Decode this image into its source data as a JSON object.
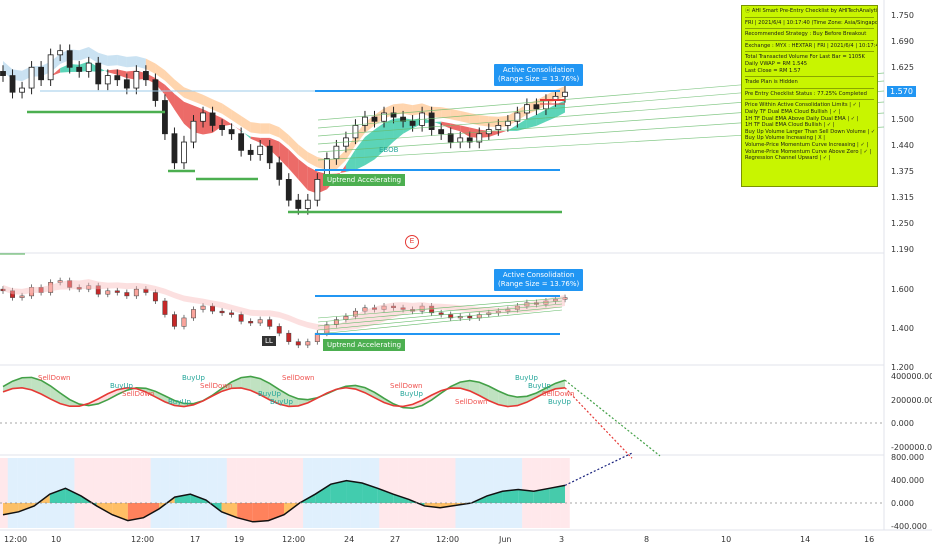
{
  "chart_data": [
    {
      "type": "candlestick",
      "panel": "main",
      "y_ticks": [
        "1.750",
        "1.690",
        "1.625",
        "1.565",
        "1.500",
        "1.440",
        "1.375",
        "1.315",
        "1.250",
        "1.190"
      ],
      "ylim": [
        1.19,
        1.78
      ],
      "current_price": "1.570",
      "annotations": [
        "Active Consolidation",
        "(Range Size = 13.76%)",
        "Uptrend Accelerating",
        "EBOB"
      ],
      "event_marker": "E",
      "closes": [
        1.61,
        1.57,
        1.58,
        1.63,
        1.6,
        1.66,
        1.67,
        1.63,
        1.62,
        1.64,
        1.59,
        1.61,
        1.6,
        1.58,
        1.62,
        1.6,
        1.55,
        1.47,
        1.4,
        1.45,
        1.5,
        1.52,
        1.49,
        1.48,
        1.47,
        1.43,
        1.42,
        1.44,
        1.4,
        1.36,
        1.31,
        1.29,
        1.31,
        1.36,
        1.41,
        1.44,
        1.46,
        1.49,
        1.51,
        1.5,
        1.52,
        1.51,
        1.5,
        1.49,
        1.52,
        1.48,
        1.47,
        1.45,
        1.46,
        1.45,
        1.47,
        1.48,
        1.49,
        1.5,
        1.52,
        1.54,
        1.53,
        1.55,
        1.56,
        1.57
      ]
    },
    {
      "type": "candlestick",
      "panel": "second",
      "y_ticks": [
        "1.600",
        "1.400",
        "1.200"
      ],
      "ylim": [
        1.19,
        1.78
      ],
      "annotations": [
        "Active Consolidation",
        "(Range Size = 13.76%)",
        "Uptrend Accelerating",
        "LL"
      ]
    },
    {
      "type": "line",
      "panel": "volume-momentum",
      "y_ticks": [
        "400000.000",
        "200000.000",
        "0.000",
        "-200000.000"
      ],
      "labels": [
        "SellDown",
        "BuyUp",
        "SellDown",
        "BuyUp",
        "BuyUp",
        "SellDown",
        "BuyUp",
        "BuyUp",
        "SellDown",
        "SellDown",
        "BuyUp",
        "SellDown",
        "BuyUp",
        "BuyUp",
        "SellDown",
        "BuyUp"
      ]
    },
    {
      "type": "area",
      "panel": "oscillator",
      "y_ticks": [
        "800.000",
        "400.000",
        "0.000",
        "-400.000"
      ],
      "values": [
        -200,
        -150,
        -50,
        150,
        250,
        120,
        -50,
        -200,
        -300,
        -250,
        -100,
        100,
        150,
        50,
        -150,
        -250,
        -320,
        -300,
        -200,
        0,
        150,
        320,
        380,
        340,
        250,
        150,
        60,
        -50,
        -80,
        -40,
        0,
        120,
        200,
        230,
        200,
        250,
        300
      ]
    }
  ],
  "x_axis": {
    "ticks": [
      "12:00",
      "10",
      "12:00",
      "17",
      "19",
      "12:00",
      "24",
      "27",
      "12:00",
      "Jun",
      "3",
      "8",
      "10",
      "14",
      "16",
      "12:00"
    ]
  },
  "checklist": {
    "title": "ⓐ AHI Smart Pre-Entry Checklist by AHITechAnalytics",
    "date_line": "FRI | 2021/6/4 | 10:17:40 (Time Zone: Asia/Singapore)",
    "strategy": "Recommended Strategy : Buy Before Breakout",
    "exchange": "Exchange : MYX : HEXTAR | FRI | 2021/6/4 | 10:17:40",
    "stats": [
      "Total Transacted Volume For Last Bar = 1105K",
      "Daily VWAP = RM 1.545",
      "Last Close = RM 1.57"
    ],
    "trade_plan": "Trade Plan is Hidden",
    "status": "Pre Entry Checklist Status : 77.25% Completed",
    "items": [
      "Price Within Active Consolidation Limits | ✓ |",
      "Daily TF Dual EMA Cloud Bullish | ✓ |",
      "1H TF Dual EMA Above Daily Dual EMA | ✓ |",
      "1H TF Dual EMA Cloud Bullish | ✓ |",
      "Buy Up Volume Larger Than Sell Down Volume | ✓ |",
      "Buy Up Volume Increasing | X |",
      "Volume-Price Momentum Curve Increasing | ✓ |",
      "Volume-Price Momentum Curve Above Zero | ✓ |",
      "Regression Channel Upward | ✓ |"
    ]
  },
  "colors": {
    "accent_blue": "#2196f3",
    "up_green": "#4caf50",
    "down_red": "#e53935",
    "cloud_teal": "#26c6a0",
    "cloud_orange": "#ffb36b",
    "checklist_bg": "#c8f500"
  }
}
